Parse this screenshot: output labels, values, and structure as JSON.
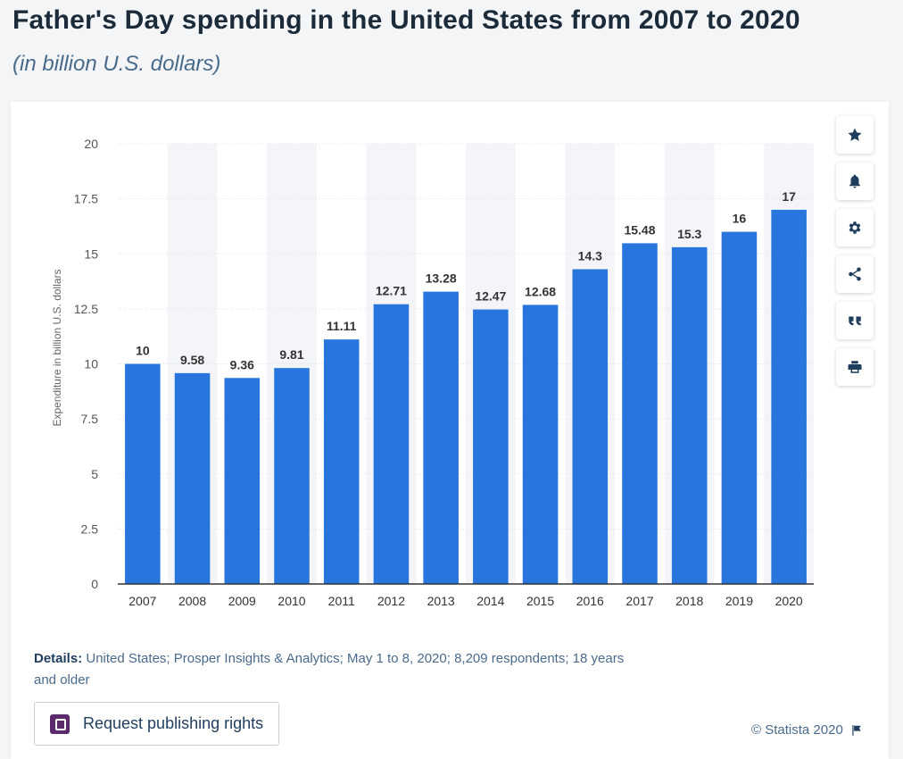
{
  "page": {
    "title": "Father's Day spending in the United States from 2007 to 2020",
    "subtitle": "(in billion U.S. dollars)"
  },
  "tools": [
    {
      "name": "star-icon"
    },
    {
      "name": "bell-icon"
    },
    {
      "name": "gear-icon"
    },
    {
      "name": "share-icon"
    },
    {
      "name": "quote-icon"
    },
    {
      "name": "print-icon"
    }
  ],
  "details": {
    "label": "Details:",
    "text": " United States; Prosper Insights & Analytics; May 1 to 8, 2020; 8,209 respondents; 18 years and older"
  },
  "publish_button": {
    "label": "Request publishing rights"
  },
  "copyright": "© Statista 2020",
  "colors": {
    "bar": "#2876dd",
    "accent": "#5a2a6b"
  },
  "chart_data": {
    "type": "bar",
    "title": "Father's Day spending in the United States from 2007 to 2020",
    "subtitle": "(in billion U.S. dollars)",
    "xlabel": "",
    "ylabel": "Expenditure in billion U.S. dollars",
    "categories": [
      "2007",
      "2008",
      "2009",
      "2010",
      "2011",
      "2012",
      "2013",
      "2014",
      "2015",
      "2016",
      "2017",
      "2018",
      "2019",
      "2020"
    ],
    "values": [
      10,
      9.58,
      9.36,
      9.81,
      11.11,
      12.71,
      13.28,
      12.47,
      12.68,
      14.3,
      15.48,
      15.3,
      16,
      17
    ],
    "value_labels": [
      "10",
      "9.58",
      "9.36",
      "9.81",
      "11.11",
      "12.71",
      "13.28",
      "12.47",
      "12.68",
      "14.3",
      "15.48",
      "15.3",
      "16",
      "17"
    ],
    "ylim": [
      0,
      20
    ],
    "yticks": [
      0,
      2.5,
      5,
      7.5,
      10,
      12.5,
      15,
      17.5,
      20
    ],
    "ytick_labels": [
      "0",
      "2.5",
      "5",
      "7.5",
      "10",
      "12.5",
      "15",
      "17.5",
      "20"
    ],
    "grid": true,
    "legend": "none"
  }
}
